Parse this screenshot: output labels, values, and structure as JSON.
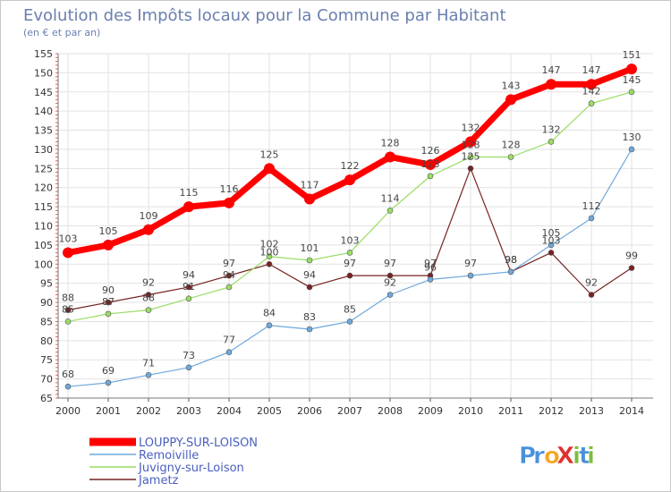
{
  "chart_data": {
    "type": "line",
    "title": "Evolution des Impôts locaux pour la Commune par Habitant",
    "subtitle": "(en € et par an)",
    "x": [
      "2000",
      "2001",
      "2002",
      "2003",
      "2004",
      "2005",
      "2006",
      "2007",
      "2008",
      "2009",
      "2010",
      "2011",
      "2012",
      "2013",
      "2014"
    ],
    "ylim": [
      65,
      155
    ],
    "yticks": [
      65,
      70,
      75,
      80,
      85,
      90,
      95,
      100,
      105,
      110,
      115,
      120,
      125,
      130,
      135,
      140,
      145,
      150,
      155
    ],
    "grid": true,
    "legend_position": "bottom-left",
    "series": [
      {
        "name": "LOUPPY-SUR-LOISON",
        "color": "#ff0000",
        "values": [
          103,
          105,
          109,
          115,
          116,
          125,
          117,
          122,
          128,
          126,
          132,
          143,
          147,
          147,
          151
        ]
      },
      {
        "name": "Remoiville",
        "color": "#6fa8dc",
        "values": [
          68,
          69,
          71,
          73,
          77,
          84,
          83,
          85,
          92,
          96,
          97,
          98,
          105,
          112,
          130
        ]
      },
      {
        "name": "Juvigny-sur-Loison",
        "color": "#99dd66",
        "values": [
          85,
          87,
          88,
          91,
          94,
          102,
          101,
          103,
          114,
          123,
          128,
          128,
          132,
          142,
          145
        ]
      },
      {
        "name": "Jametz",
        "color": "#772222",
        "values": [
          88,
          90,
          92,
          94,
          97,
          100,
          94,
          97,
          97,
          97,
          125,
          98,
          103,
          92,
          99
        ]
      }
    ]
  },
  "logo": {
    "text": "ProXiti",
    "letters": [
      "P",
      "r",
      "o",
      "X",
      "i",
      "t",
      "i"
    ],
    "colors": [
      "#4a90d9",
      "#4a90d9",
      "#f5a623",
      "#e03030",
      "#7bbf3b",
      "#4a90d9",
      "#7bbf3b"
    ]
  }
}
